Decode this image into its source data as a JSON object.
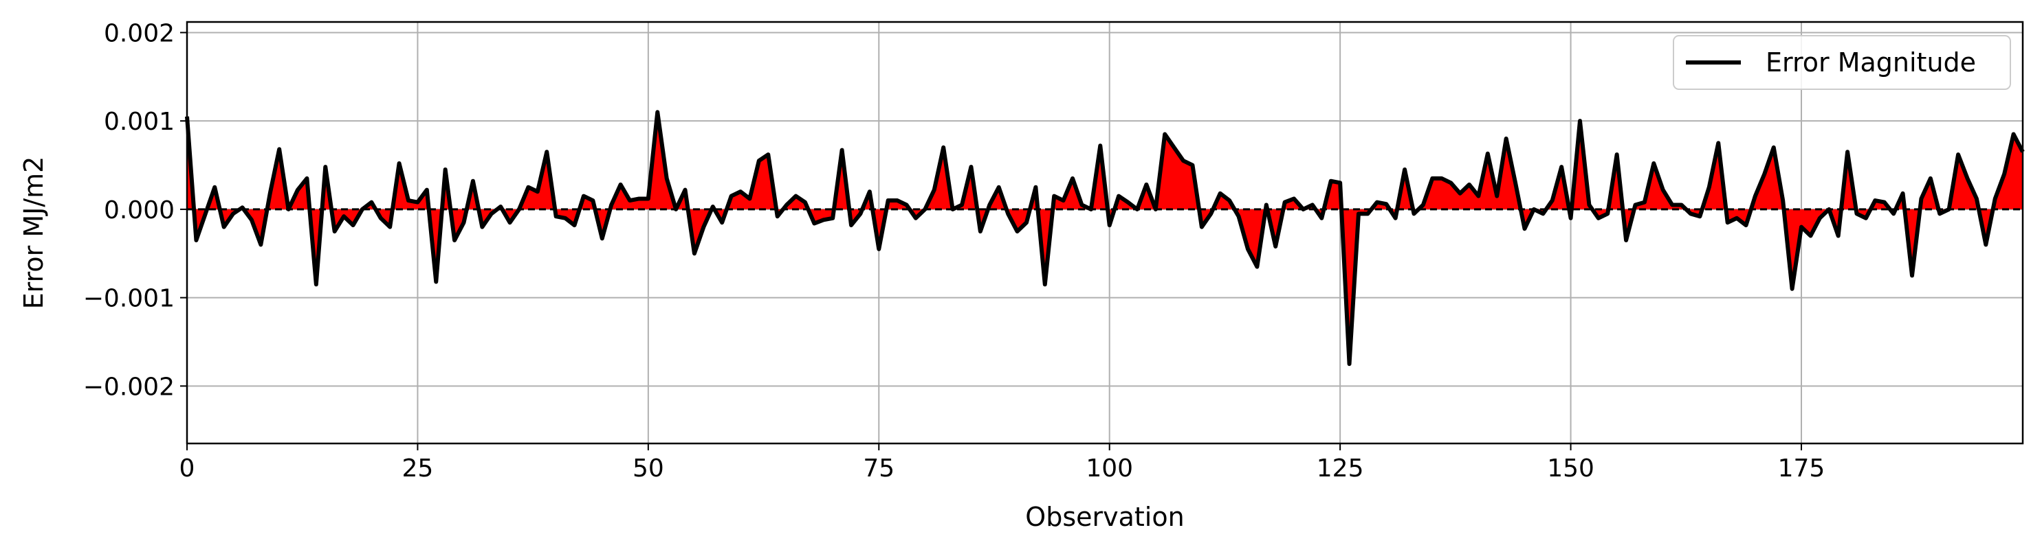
{
  "chart_data": {
    "type": "line",
    "title": "",
    "xlabel": "Observation",
    "ylabel": "Error MJ/m2",
    "xlim": [
      0,
      199
    ],
    "ylim": [
      -0.00265,
      0.00212
    ],
    "x_ticks": [
      0,
      25,
      50,
      75,
      100,
      125,
      150,
      175
    ],
    "x_tick_labels": [
      "0",
      "25",
      "50",
      "75",
      "100",
      "125",
      "150",
      "175"
    ],
    "y_ticks": [
      -0.002,
      -0.001,
      0.0,
      0.001,
      0.002
    ],
    "y_tick_labels": [
      "−0.002",
      "−0.001",
      "0.000",
      "0.001",
      "0.002"
    ],
    "grid": true,
    "legend_position": "top-right",
    "baseline": 0,
    "fill_color": "#ff0000",
    "line_color": "#000000",
    "series": [
      {
        "name": "Error Magnitude",
        "x_start": 0,
        "x_step": 1,
        "values": [
          0.00105,
          -0.00035,
          -5e-05,
          0.00025,
          -0.0002,
          -5e-05,
          2e-05,
          -0.00012,
          -0.0004,
          0.00018,
          0.00068,
          0.0,
          0.00022,
          0.00035,
          -0.00085,
          0.00048,
          -0.00025,
          -8e-05,
          -0.00018,
          0.0,
          8e-05,
          -0.0001,
          -0.0002,
          0.00052,
          0.0001,
          8e-05,
          0.00022,
          -0.00082,
          0.00045,
          -0.00035,
          -0.00015,
          0.00032,
          -0.0002,
          -5e-05,
          3e-05,
          -0.00015,
          0.0,
          0.00025,
          0.0002,
          0.00065,
          -8e-05,
          -0.0001,
          -0.00018,
          0.00015,
          0.0001,
          -0.00033,
          5e-05,
          0.00028,
          0.0001,
          0.00012,
          0.00012,
          0.0011,
          0.00035,
          0.0,
          0.00022,
          -0.0005,
          -0.0002,
          3e-05,
          -0.00015,
          0.00015,
          0.0002,
          0.00012,
          0.00055,
          0.00062,
          -8e-05,
          5e-05,
          0.00015,
          8e-05,
          -0.00016,
          -0.00012,
          -0.0001,
          0.00067,
          -0.00018,
          -5e-05,
          0.0002,
          -0.00045,
          0.0001,
          0.0001,
          5e-05,
          -0.0001,
          0.0,
          0.00022,
          0.0007,
          0.0,
          5e-05,
          0.00048,
          -0.00025,
          5e-05,
          0.00025,
          -5e-05,
          -0.00025,
          -0.00015,
          0.00025,
          -0.00085,
          0.00015,
          0.0001,
          0.00035,
          5e-05,
          0.0,
          0.00072,
          -0.00018,
          0.00015,
          8e-05,
          0.0,
          0.00028,
          0.0,
          0.00085,
          0.0007,
          0.00055,
          0.0005,
          -0.0002,
          -5e-05,
          0.00018,
          0.0001,
          -8e-05,
          -0.00045,
          -0.00065,
          5e-05,
          -0.00042,
          8e-05,
          0.00012,
          0.0,
          5e-05,
          -0.0001,
          0.00032,
          0.0003,
          -0.00175,
          -5e-05,
          -5e-05,
          8e-05,
          6e-05,
          -0.0001,
          0.00045,
          -5e-05,
          5e-05,
          0.00035,
          0.00035,
          0.0003,
          0.00018,
          0.00028,
          0.00015,
          0.00063,
          0.00015,
          0.0008,
          0.0003,
          -0.00022,
          0.0,
          -5e-05,
          0.0001,
          0.00048,
          -0.0001,
          0.001,
          5e-05,
          -0.0001,
          -5e-05,
          0.00062,
          -0.00035,
          5e-05,
          8e-05,
          0.00052,
          0.00022,
          5e-05,
          5e-05,
          -5e-05,
          -8e-05,
          0.00025,
          0.00075,
          -0.00015,
          -0.0001,
          -0.00018,
          0.00015,
          0.0004,
          0.0007,
          0.0001,
          -0.0009,
          -0.0002,
          -0.0003,
          -0.0001,
          0.0,
          -0.0003,
          0.00065,
          -5e-05,
          -0.0001,
          0.0001,
          8e-05,
          -5e-05,
          0.00018,
          -0.00075,
          0.00012,
          0.00035,
          -5e-05,
          0.0,
          0.00062,
          0.00035,
          0.00012,
          -0.0004,
          0.00012,
          0.0004,
          0.00085,
          0.00065
        ]
      }
    ]
  }
}
